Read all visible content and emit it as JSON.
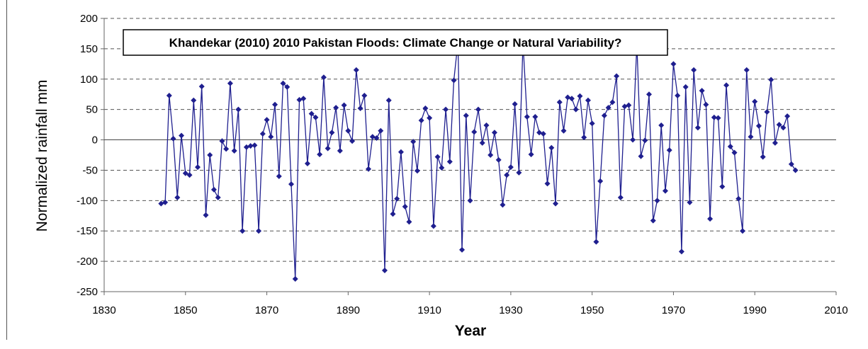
{
  "chart_data": {
    "type": "line",
    "title": "Khandekar (2010) 2010 Pakistan Floods: Climate Change or Natural Variability?",
    "xlabel": "Year",
    "ylabel": "Normalized rainfall mm",
    "xlim": [
      1830,
      2010
    ],
    "ylim": [
      -250,
      200
    ],
    "xticks": [
      1830,
      1850,
      1870,
      1890,
      1910,
      1930,
      1950,
      1970,
      1990,
      2010
    ],
    "yticks": [
      200,
      150,
      100,
      50,
      0,
      -50,
      -100,
      -150,
      -200,
      -250
    ],
    "grid": "horizontal-dashed",
    "series_color": "#1f1f8f",
    "x": [
      1844,
      1845,
      1846,
      1847,
      1848,
      1849,
      1850,
      1851,
      1852,
      1853,
      1854,
      1855,
      1856,
      1857,
      1858,
      1859,
      1860,
      1861,
      1862,
      1863,
      1864,
      1865,
      1866,
      1867,
      1868,
      1869,
      1870,
      1871,
      1872,
      1873,
      1874,
      1875,
      1876,
      1877,
      1878,
      1879,
      1880,
      1881,
      1882,
      1883,
      1884,
      1885,
      1886,
      1887,
      1888,
      1889,
      1890,
      1891,
      1892,
      1893,
      1894,
      1895,
      1896,
      1897,
      1898,
      1899,
      1900,
      1901,
      1902,
      1903,
      1904,
      1905,
      1906,
      1907,
      1908,
      1909,
      1910,
      1911,
      1912,
      1913,
      1914,
      1915,
      1916,
      1917,
      1918,
      1919,
      1920,
      1921,
      1922,
      1923,
      1924,
      1925,
      1926,
      1927,
      1928,
      1929,
      1930,
      1931,
      1932,
      1933,
      1934,
      1935,
      1936,
      1937,
      1938,
      1939,
      1940,
      1941,
      1942,
      1943,
      1944,
      1945,
      1946,
      1947,
      1948,
      1949,
      1950,
      1951,
      1952,
      1953,
      1954,
      1955,
      1956,
      1957,
      1958,
      1959,
      1960,
      1961,
      1962,
      1963,
      1964,
      1965,
      1966,
      1967,
      1968,
      1969,
      1970,
      1971,
      1972,
      1973,
      1974,
      1975,
      1976,
      1977,
      1978,
      1979,
      1980,
      1981,
      1982,
      1983,
      1984,
      1985,
      1986,
      1987,
      1988,
      1989,
      1990,
      1991,
      1992,
      1993,
      1994,
      1995,
      1996,
      1997,
      1998,
      1999,
      2000
    ],
    "values": [
      -105,
      -103,
      73,
      2,
      -95,
      7,
      -55,
      -58,
      65,
      -45,
      88,
      -124,
      -25,
      -82,
      -95,
      -2,
      -15,
      93,
      -18,
      50,
      -150,
      -12,
      -10,
      -9,
      -150,
      10,
      33,
      5,
      58,
      -60,
      93,
      87,
      -73,
      -229,
      66,
      68,
      -39,
      43,
      37,
      -24,
      103,
      -14,
      12,
      53,
      -18,
      57,
      15,
      -2,
      115,
      52,
      73,
      -48,
      5,
      3,
      15,
      -215,
      65,
      -122,
      -97,
      -20,
      -110,
      -135,
      -3,
      -51,
      32,
      52,
      36,
      -142,
      -28,
      -46,
      50,
      -36,
      98,
      161,
      -181,
      40,
      -100,
      13,
      50,
      -5,
      24,
      -25,
      12,
      -33,
      -107,
      -58,
      -45,
      59,
      -54,
      160,
      38,
      -24,
      38,
      12,
      10,
      -72,
      -13,
      -105,
      62,
      15,
      70,
      68,
      50,
      72,
      4,
      65,
      27,
      -168,
      -68,
      40,
      53,
      62,
      105,
      -95,
      55,
      57,
      0,
      158,
      -27,
      -1,
      75,
      -133,
      -100,
      24,
      -84,
      -17,
      125,
      73,
      -184,
      87,
      -103,
      115,
      20,
      81,
      58,
      -130,
      37,
      36,
      -77,
      90,
      -11,
      -21,
      -97,
      -150,
      115,
      5,
      63,
      23,
      -28,
      46,
      99,
      -5,
      25,
      20,
      39,
      -40,
      -50
    ]
  }
}
